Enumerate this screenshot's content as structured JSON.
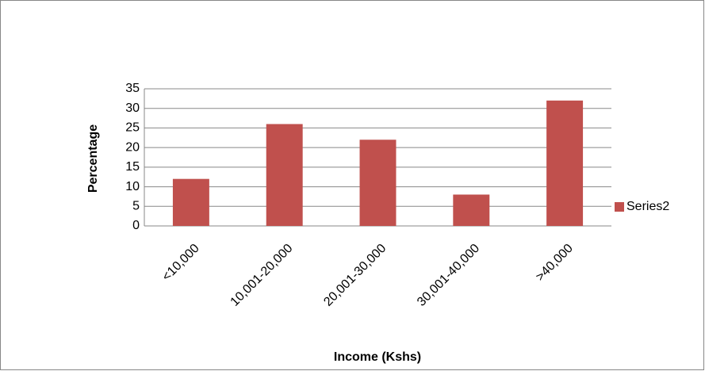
{
  "chart_data": {
    "type": "bar",
    "categories": [
      "<10,000",
      "10,001-20,000",
      "20,001-30,000",
      "30,001-40,000",
      ">40,000"
    ],
    "series": [
      {
        "name": "Series2",
        "color": "#c0504d",
        "values": [
          12,
          26,
          22,
          8,
          32
        ]
      }
    ],
    "x_label": "Income (Kshs)",
    "y_label": "Percentage",
    "ylim": [
      0,
      35
    ],
    "yticks": [
      0,
      5,
      10,
      15,
      20,
      25,
      30,
      35
    ],
    "grid": true,
    "legend": "right"
  }
}
